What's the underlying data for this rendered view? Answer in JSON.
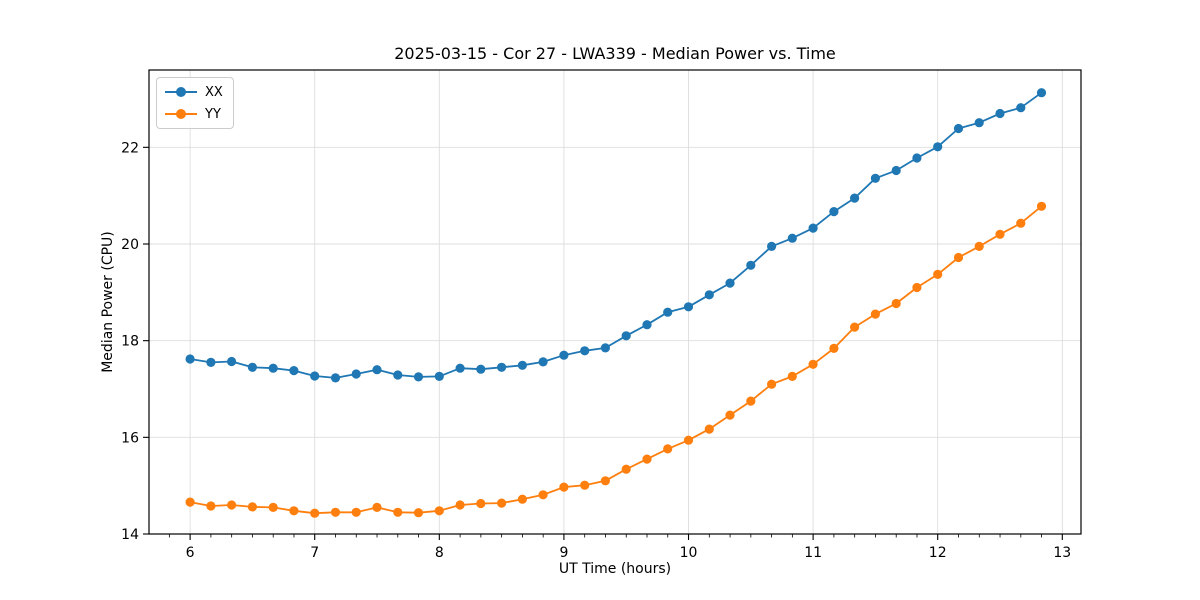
{
  "chart_data": {
    "type": "line",
    "title": "2025-03-15 - Cor 27 - LWA339 - Median Power vs. Time",
    "xlabel": "UT Time (hours)",
    "ylabel": "Median Power (CPU)",
    "xlim": [
      5.67,
      13.15
    ],
    "ylim": [
      14,
      23.6
    ],
    "x_ticks": [
      6,
      7,
      8,
      9,
      10,
      11,
      12,
      13
    ],
    "y_ticks": [
      14,
      16,
      18,
      20,
      22
    ],
    "x_minor_tick_step": 0.16667,
    "grid": true,
    "grid_color": "#dddddd",
    "legend_position": "upper left",
    "marker": "circle",
    "x": [
      6.0,
      6.167,
      6.333,
      6.5,
      6.667,
      6.833,
      7.0,
      7.167,
      7.333,
      7.5,
      7.667,
      7.833,
      8.0,
      8.167,
      8.333,
      8.5,
      8.667,
      8.833,
      9.0,
      9.167,
      9.333,
      9.5,
      9.667,
      9.833,
      10.0,
      10.167,
      10.333,
      10.5,
      10.667,
      10.833,
      11.0,
      11.167,
      11.333,
      11.5,
      11.667,
      11.833,
      12.0,
      12.167,
      12.333,
      12.5,
      12.667,
      12.833
    ],
    "series": [
      {
        "name": "XX",
        "color": "#1f77b4",
        "values": [
          17.62,
          17.55,
          17.57,
          17.45,
          17.43,
          17.38,
          17.27,
          17.23,
          17.31,
          17.4,
          17.29,
          17.25,
          17.26,
          17.43,
          17.41,
          17.45,
          17.49,
          17.56,
          17.7,
          17.79,
          17.85,
          18.1,
          18.33,
          18.59,
          18.7,
          18.95,
          19.19,
          19.56,
          19.95,
          20.12,
          20.33,
          20.67,
          20.95,
          21.36,
          21.52,
          21.78,
          22.01,
          22.39,
          22.51,
          22.7,
          22.82,
          23.13
        ]
      },
      {
        "name": "YY",
        "color": "#ff7f0e",
        "values": [
          14.66,
          14.58,
          14.6,
          14.56,
          14.55,
          14.48,
          14.43,
          14.45,
          14.45,
          14.55,
          14.45,
          14.44,
          14.48,
          14.6,
          14.63,
          14.64,
          14.72,
          14.81,
          14.97,
          15.01,
          15.1,
          15.34,
          15.55,
          15.76,
          15.94,
          16.17,
          16.46,
          16.75,
          17.1,
          17.26,
          17.51,
          17.84,
          18.28,
          18.55,
          18.77,
          19.1,
          19.37,
          19.72,
          19.95,
          20.2,
          20.43,
          20.78
        ]
      }
    ]
  }
}
